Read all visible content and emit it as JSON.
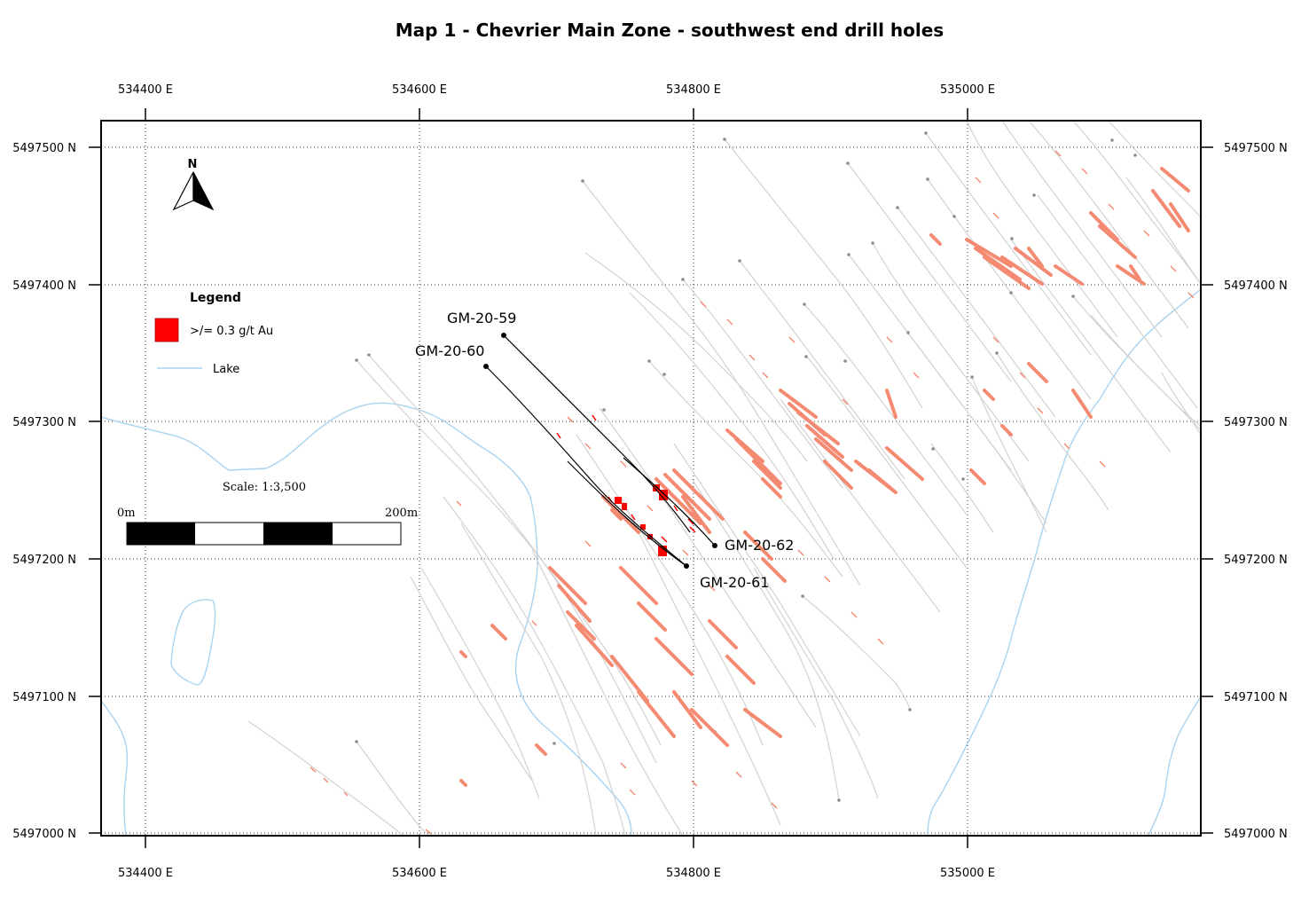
{
  "map": {
    "title": "Map 1 - Chevrier Main Zone - southwest end drill holes",
    "x_ticks": [
      "534400 E",
      "534600 E",
      "534800 E",
      "535000 E"
    ],
    "y_ticks": [
      "5497500 N",
      "5497400 N",
      "5497300 N",
      "5497200 N",
      "5497100 N",
      "5497000 N"
    ],
    "colors": {
      "anomaly": "#f58a72",
      "highlight": "#ff0000",
      "lake": "#a9d3ef",
      "old_hole": "#cccccc",
      "new_hole": "#000000"
    }
  },
  "north_arrow": {
    "label": "N"
  },
  "legend": {
    "title": "Legend",
    "items": [
      {
        "label": ">/= 0.3 g/t Au",
        "swatch": "red-box"
      },
      {
        "label": "Lake",
        "swatch": "blue-line"
      }
    ]
  },
  "scale": {
    "text": "Scale: 1:3,500",
    "start_label": "0m",
    "end_label": "200m"
  },
  "drill_holes": [
    {
      "id": "GM-20-59",
      "label": "GM-20-59"
    },
    {
      "id": "GM-20-60",
      "label": "GM-20-60"
    },
    {
      "id": "GM-20-61",
      "label": "GM-20-61"
    },
    {
      "id": "GM-20-62",
      "label": "GM-20-62"
    }
  ]
}
